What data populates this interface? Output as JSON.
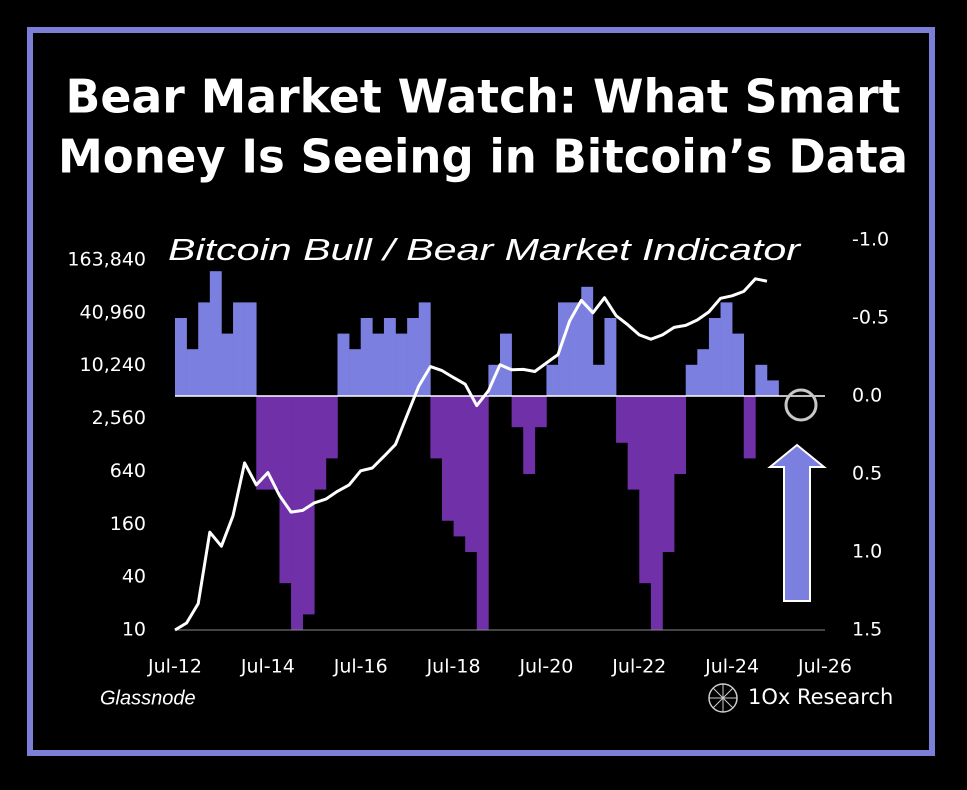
{
  "chart_data": {
    "type": "dual-axis-area-line",
    "title": [
      "Bear Market Watch: What Smart",
      "Money Is Seeing in Bitcoin’s Data"
    ],
    "subtitle": "Bitcoin Bull / Bear Market Indicator",
    "source": "Glassnode",
    "brand": "1Ox Research",
    "x": [
      "2012-07",
      "2012-10",
      "2013-01",
      "2013-04",
      "2013-07",
      "2013-10",
      "2014-01",
      "2014-04",
      "2014-07",
      "2014-10",
      "2015-01",
      "2015-04",
      "2015-07",
      "2015-10",
      "2016-01",
      "2016-04",
      "2016-07",
      "2016-10",
      "2017-01",
      "2017-04",
      "2017-07",
      "2017-10",
      "2018-01",
      "2018-04",
      "2018-07",
      "2018-10",
      "2019-01",
      "2019-04",
      "2019-07",
      "2019-10",
      "2020-01",
      "2020-04",
      "2020-07",
      "2020-10",
      "2021-01",
      "2021-04",
      "2021-07",
      "2021-10",
      "2022-01",
      "2022-04",
      "2022-07",
      "2022-10",
      "2023-01",
      "2023-04",
      "2023-07",
      "2023-10",
      "2024-01",
      "2024-04",
      "2024-07",
      "2024-10",
      "2025-01",
      "2025-04"
    ],
    "xlim": [
      "2012-07",
      "2026-07"
    ],
    "xticks": [
      {
        "value": "2012-07",
        "label": "Jul-12"
      },
      {
        "value": "2014-07",
        "label": "Jul-14"
      },
      {
        "value": "2016-07",
        "label": "Jul-16"
      },
      {
        "value": "2018-07",
        "label": "Jul-18"
      },
      {
        "value": "2020-07",
        "label": "Jul-20"
      },
      {
        "value": "2022-07",
        "label": "Jul-22"
      },
      {
        "value": "2024-07",
        "label": "Jul-24"
      },
      {
        "value": "2026-07",
        "label": "Jul-26"
      }
    ],
    "ylim": [
      10,
      163840
    ],
    "log_scale": true,
    "yticks": [
      10,
      40,
      160,
      640,
      {
        "value": 2560,
        "label": "2,560"
      },
      {
        "value": 10240,
        "label": "10,240"
      },
      {
        "value": 40960,
        "label": "40,960"
      },
      {
        "value": 163840,
        "label": "163,840"
      }
    ],
    "y2lim": [
      1.5,
      -1.0
    ],
    "y2ticks": [
      -0.5,
      {
        "value": -1.0,
        "label": "-1.0"
      },
      {
        "value": 0,
        "label": "0.0"
      },
      0.5,
      {
        "value": 1.0,
        "label": "1.0"
      },
      1.5
    ],
    "series": [
      {
        "color": "#ffffff",
        "values": [
          10,
          12,
          20,
          130,
          90,
          200,
          800,
          450,
          620,
          340,
          220,
          230,
          280,
          310,
          380,
          450,
          650,
          700,
          950,
          1300,
          2800,
          6000,
          10000,
          9000,
          7500,
          6300,
          3600,
          5300,
          10500,
          9200,
          9300,
          8800,
          11000,
          13700,
          33000,
          57000,
          41000,
          61000,
          38000,
          30000,
          23000,
          20500,
          23000,
          28000,
          29500,
          34000,
          42000,
          60000,
          64000,
          72000,
          100000,
          94000
        ]
      },
      {
        "axis": "y2",
        "color": "#7b7fe0",
        "color_positive": "#7030a8",
        "values": [
          -0.5,
          -0.3,
          -0.6,
          -0.8,
          -0.4,
          -0.6,
          -0.6,
          0.6,
          0.6,
          1.2,
          1.5,
          1.4,
          0.6,
          0.4,
          -0.4,
          -0.3,
          -0.5,
          -0.4,
          -0.5,
          -0.4,
          -0.5,
          -0.6,
          0.4,
          0.8,
          0.9,
          1.0,
          1.5,
          -0.2,
          -0.4,
          0.2,
          0.5,
          0.2,
          -0.2,
          -0.6,
          -0.6,
          -0.7,
          -0.2,
          -0.5,
          0.3,
          0.6,
          1.2,
          1.5,
          1.0,
          0.5,
          -0.2,
          -0.3,
          -0.5,
          -0.6,
          -0.4,
          0.4,
          -0.2,
          -0.1
        ]
      }
    ]
  }
}
